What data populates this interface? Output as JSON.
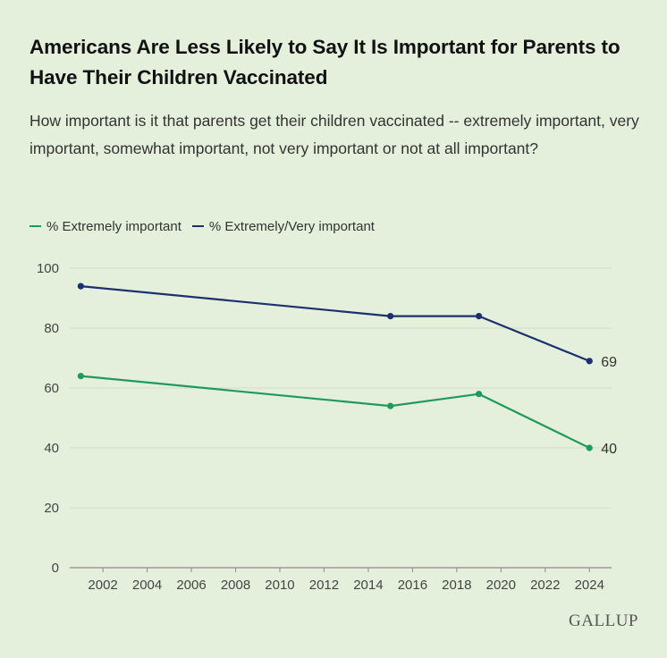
{
  "header": {
    "title": "Americans Are Less Likely to Say It Is Important for Parents to Have Their Children Vaccinated",
    "subtitle": "How important is it that parents get their children vaccinated -- extremely important, very important, somewhat important, not very important or not at all important?"
  },
  "legend": {
    "items": [
      {
        "label": "% Extremely important",
        "color": "#1f9a5a"
      },
      {
        "label": "% Extremely/Very important",
        "color": "#1c2f6e"
      }
    ]
  },
  "brand": "GALLUP",
  "chart_data": {
    "type": "line",
    "xlim": [
      2000.5,
      2025
    ],
    "ylim": [
      0,
      100
    ],
    "x_ticks": [
      2002,
      2004,
      2006,
      2008,
      2010,
      2012,
      2014,
      2016,
      2018,
      2020,
      2022,
      2024
    ],
    "y_ticks": [
      0,
      20,
      40,
      60,
      80,
      100
    ],
    "grid": true,
    "legend_position": "top-left",
    "series": [
      {
        "name": "% Extremely important",
        "color": "#1f9a5a",
        "x": [
          2001,
          2015,
          2019,
          2024
        ],
        "values": [
          64,
          54,
          58,
          40
        ],
        "end_label": "40"
      },
      {
        "name": "% Extremely/Very important",
        "color": "#1c2f6e",
        "x": [
          2001,
          2015,
          2019,
          2024
        ],
        "values": [
          94,
          84,
          84,
          69
        ],
        "end_label": "69"
      }
    ]
  }
}
